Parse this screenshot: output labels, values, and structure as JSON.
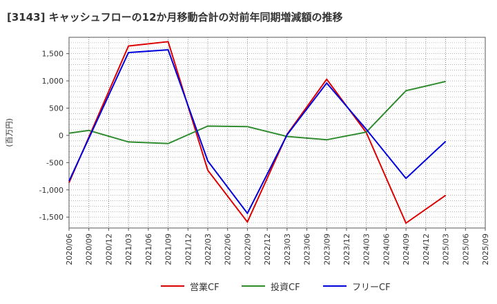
{
  "chart_data": {
    "type": "line",
    "title": "[3143]  キャッシュフローの12か月移動合計の対前年同期増減額の推移",
    "ylabel": "(百万円)",
    "xlabel": "",
    "ylim": [
      -1700,
      1800
    ],
    "yticks": [
      1500,
      1000,
      500,
      0,
      -500,
      -1000,
      -1500
    ],
    "ytick_labels": [
      "1,500",
      "1,000",
      "500",
      "0",
      "-500",
      "-1,000",
      "-1,500"
    ],
    "categories": [
      "2020/06",
      "2020/09",
      "2020/12",
      "2021/03",
      "2021/06",
      "2021/09",
      "2021/12",
      "2022/03",
      "2022/06",
      "2022/09",
      "2022/12",
      "2023/03",
      "2023/06",
      "2023/09",
      "2023/12",
      "2024/03",
      "2024/06",
      "2024/09",
      "2024/12",
      "2025/03",
      "2025/06",
      "2025/09"
    ],
    "grid": true,
    "legend_position": "bottom",
    "series": [
      {
        "name": "営業CF",
        "color": "#dd0000",
        "points": [
          [
            "2020/06",
            -870
          ],
          [
            "2021/03",
            1640
          ],
          [
            "2021/09",
            1720
          ],
          [
            "2022/03",
            -640
          ],
          [
            "2022/09",
            -1590
          ],
          [
            "2023/03",
            20
          ],
          [
            "2023/09",
            1030
          ],
          [
            "2024/03",
            50
          ],
          [
            "2024/09",
            -1610
          ],
          [
            "2025/03",
            -1100
          ]
        ]
      },
      {
        "name": "投資CF",
        "color": "#2e8b2e",
        "points": [
          [
            "2020/06",
            40
          ],
          [
            "2020/09",
            90
          ],
          [
            "2021/03",
            -120
          ],
          [
            "2021/09",
            -150
          ],
          [
            "2022/03",
            170
          ],
          [
            "2022/09",
            160
          ],
          [
            "2023/03",
            -20
          ],
          [
            "2023/09",
            -80
          ],
          [
            "2024/03",
            60
          ],
          [
            "2024/09",
            820
          ],
          [
            "2025/03",
            990
          ]
        ]
      },
      {
        "name": "フリーCF",
        "color": "#0000dd",
        "points": [
          [
            "2020/06",
            -840
          ],
          [
            "2021/03",
            1520
          ],
          [
            "2021/09",
            1570
          ],
          [
            "2022/03",
            -470
          ],
          [
            "2022/09",
            -1430
          ],
          [
            "2023/03",
            10
          ],
          [
            "2023/09",
            960
          ],
          [
            "2024/03",
            110
          ],
          [
            "2024/09",
            -790
          ],
          [
            "2025/03",
            -110
          ]
        ]
      }
    ]
  }
}
